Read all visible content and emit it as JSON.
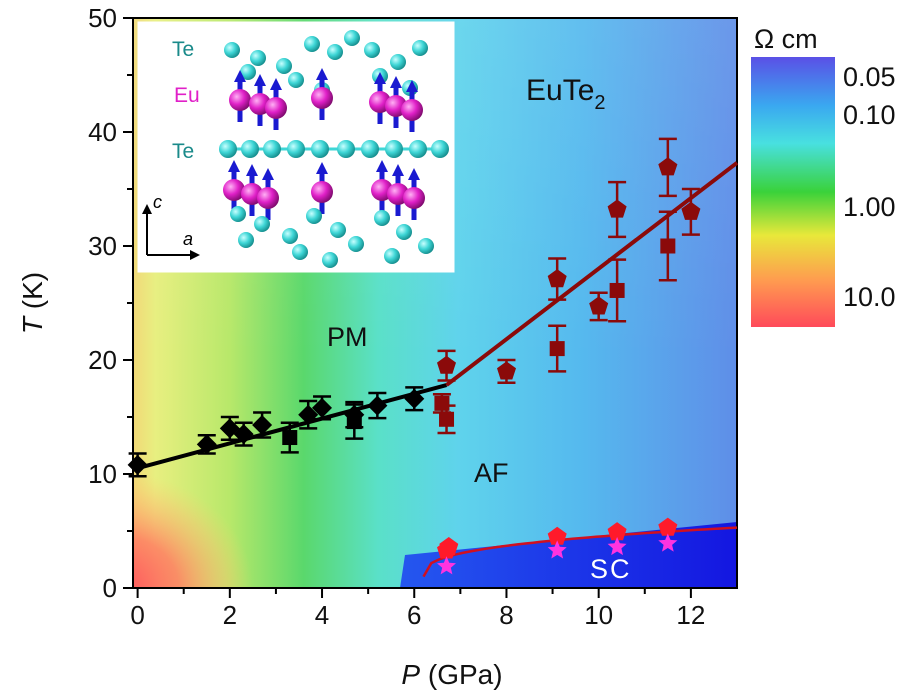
{
  "chart_data": {
    "type": "scatter",
    "title": "",
    "xlabel_var": "P",
    "xlabel_unit": "(GPa)",
    "ylabel_var": "T",
    "ylabel_unit": "(K)",
    "xlim": [
      -0.1,
      13
    ],
    "ylim": [
      0,
      50
    ],
    "x_ticks": [
      "0",
      "2",
      "4",
      "6",
      "8",
      "10",
      "12"
    ],
    "x_tick_values": [
      0,
      2,
      4,
      6,
      8,
      10,
      12
    ],
    "y_ticks": [
      "0",
      "10",
      "20",
      "30",
      "40",
      "50"
    ],
    "y_tick_values": [
      0,
      10,
      20,
      30,
      40,
      50
    ],
    "grid": false,
    "colorbar": {
      "unit": "Ω cm",
      "labels": [
        "0.05",
        "0.10",
        "1.00",
        "10.0"
      ],
      "scale": "log",
      "colors_top_to_bottom": [
        "#5a50e6",
        "#3aa8f0",
        "#48e0e0",
        "#3ad23a",
        "#e8e83a",
        "#ff7a50",
        "#ff4a5a"
      ]
    },
    "region_labels": {
      "material": "EuTe",
      "material_sub": "2",
      "pm": "PM",
      "af": "AF",
      "sc": "SC"
    },
    "inset": {
      "label_te_top": "Te",
      "label_eu": "Eu",
      "label_te_mid": "Te",
      "axis_c": "c",
      "axis_a": "a",
      "colors": {
        "te": "#3ed6d6",
        "eu": "#e020c8",
        "spin": "#1a1ad0"
      }
    },
    "series": [
      {
        "marker": "diamond",
        "color": "#000000",
        "points": [
          {
            "x": 0,
            "y": 10.8,
            "err": 1.0
          },
          {
            "x": 1.5,
            "y": 12.6,
            "err": 0.8
          },
          {
            "x": 2.0,
            "y": 14.0,
            "err": 1.0
          },
          {
            "x": 2.3,
            "y": 13.5,
            "err": 1.0
          },
          {
            "x": 2.7,
            "y": 14.3,
            "err": 1.1
          },
          {
            "x": 3.7,
            "y": 15.2,
            "err": 1.2
          },
          {
            "x": 4.0,
            "y": 15.8,
            "err": 1.0
          },
          {
            "x": 4.7,
            "y": 15.2,
            "err": 1.1
          },
          {
            "x": 5.2,
            "y": 16.0,
            "err": 1.1
          },
          {
            "x": 6.0,
            "y": 16.6,
            "err": 1.0
          }
        ]
      },
      {
        "marker": "square",
        "color": "#000000",
        "points": [
          {
            "x": 3.3,
            "y": 13.2,
            "err": 1.3
          },
          {
            "x": 4.7,
            "y": 14.6,
            "err": 1.5
          }
        ]
      },
      {
        "marker": "pentagon",
        "color": "#8b0a0a",
        "points": [
          {
            "x": 6.7,
            "y": 19.5,
            "err": 1.3
          },
          {
            "x": 8.0,
            "y": 19.0,
            "err": 1.0
          },
          {
            "x": 9.1,
            "y": 27.1,
            "err": 1.8
          },
          {
            "x": 10.0,
            "y": 24.7,
            "err": 1.2
          },
          {
            "x": 10.4,
            "y": 33.2,
            "err": 2.4
          },
          {
            "x": 11.5,
            "y": 36.9,
            "err": 2.5
          },
          {
            "x": 12.0,
            "y": 33.0,
            "err": 2.0
          }
        ]
      },
      {
        "marker": "square",
        "color": "#8b0a0a",
        "points": [
          {
            "x": 6.6,
            "y": 16.2,
            "err": 0.8
          },
          {
            "x": 6.7,
            "y": 14.8,
            "err": 1.2
          },
          {
            "x": 9.1,
            "y": 21.0,
            "err": 2.0
          },
          {
            "x": 10.4,
            "y": 26.1,
            "err": 2.7
          },
          {
            "x": 11.5,
            "y": 30.0,
            "err": 3.0
          }
        ]
      },
      {
        "marker": "pentagon",
        "color": "#ff1a2a",
        "points": [
          {
            "x": 6.7,
            "y": 3.3
          },
          {
            "x": 6.75,
            "y": 3.6
          },
          {
            "x": 9.1,
            "y": 4.5
          },
          {
            "x": 10.4,
            "y": 4.9
          },
          {
            "x": 11.5,
            "y": 5.3
          }
        ]
      },
      {
        "marker": "star",
        "color": "#ff33e0",
        "points": [
          {
            "x": 6.7,
            "y": 1.9
          },
          {
            "x": 9.1,
            "y": 3.3
          },
          {
            "x": 10.4,
            "y": 3.6
          },
          {
            "x": 11.5,
            "y": 3.9
          }
        ]
      }
    ],
    "fit_lines": [
      {
        "color": "#000000",
        "points": [
          [
            -0.1,
            10.4
          ],
          [
            6.7,
            17.8
          ]
        ]
      },
      {
        "color": "#8b0a0a",
        "points": [
          [
            6.7,
            17.8
          ],
          [
            13,
            37.3
          ]
        ]
      }
    ],
    "sc_curve": {
      "color": "#d01020",
      "start": [
        6.2,
        1.0
      ],
      "end": [
        13,
        5.3
      ]
    }
  }
}
